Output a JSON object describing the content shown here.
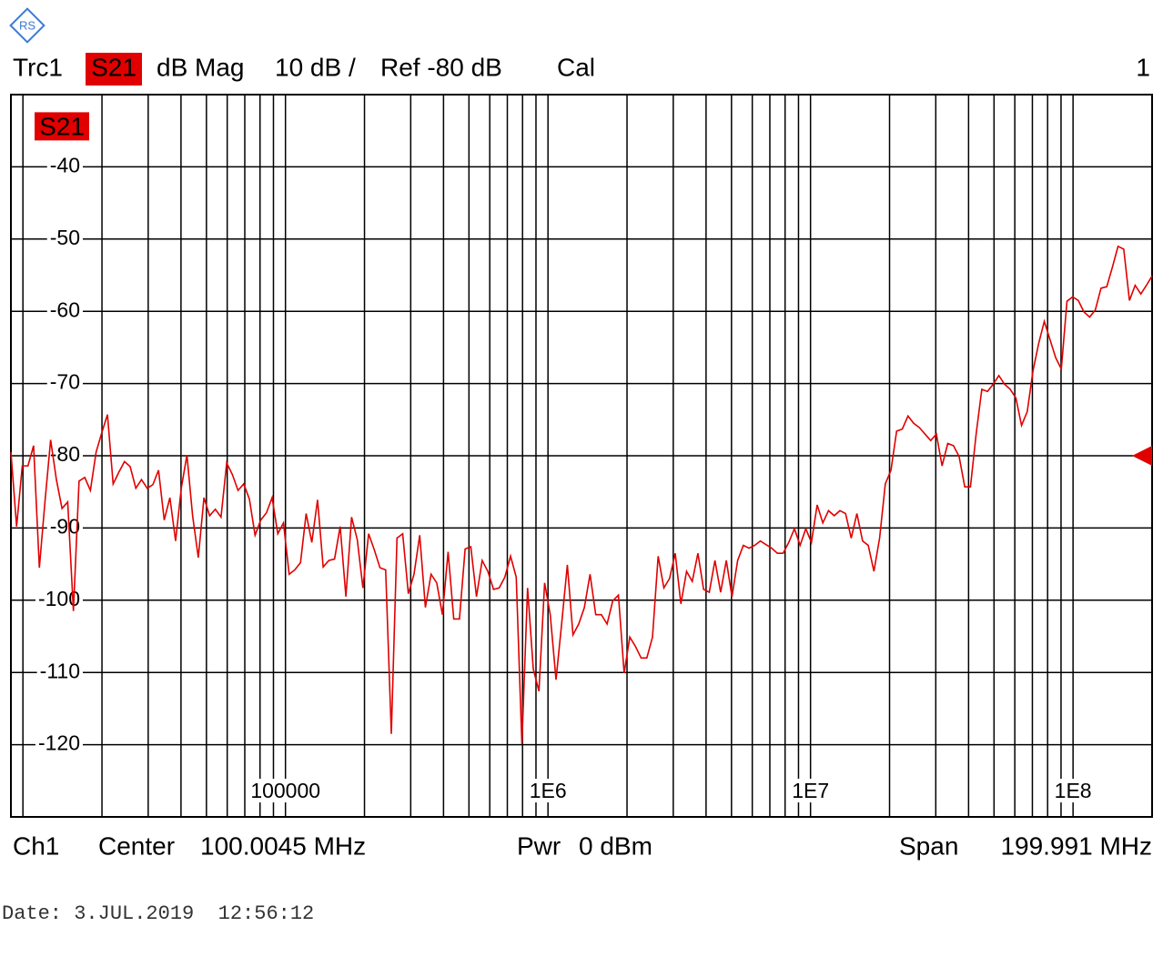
{
  "header": {
    "trace": "Trc1",
    "parameter": "S21",
    "format": "dB Mag",
    "scale": "10 dB /",
    "reference": "Ref -80 dB",
    "cal": "Cal",
    "window": "1"
  },
  "footer": {
    "channel": "Ch1",
    "center_label": "Center",
    "center_value": "100.0045 MHz",
    "power_label": "Pwr",
    "power_value": "0 dBm",
    "span_label": "Span",
    "span_value": "199.991 MHz",
    "date": "Date: 3.JUL.2019  12:56:12"
  },
  "chart_data": {
    "type": "line",
    "log_x": true,
    "grid": true,
    "ref_level": -80,
    "xlim": [
      9000,
      200000000
    ],
    "ylim": [
      -130,
      -30
    ],
    "yticks": [
      -40,
      -50,
      -60,
      -70,
      -80,
      -90,
      -100,
      -110,
      -120
    ],
    "xticks": [
      100000,
      {
        "value": 1000000,
        "label": "1E6"
      },
      {
        "value": 10000000,
        "label": "1E7"
      },
      {
        "value": 100000000,
        "label": "1E8"
      }
    ],
    "xgrid": [
      10000,
      20000,
      30000,
      40000,
      50000,
      60000,
      70000,
      80000,
      90000,
      100000,
      200000,
      300000,
      400000,
      500000,
      600000,
      700000,
      800000,
      900000,
      1000000,
      2000000,
      3000000,
      4000000,
      5000000,
      6000000,
      7000000,
      8000000,
      9000000,
      10000000,
      20000000,
      30000000,
      40000000,
      50000000,
      60000000,
      70000000,
      80000000,
      90000000,
      100000000
    ],
    "x": [
      9000,
      9460,
      9943,
      10450,
      10980,
      11550,
      12130,
      12750,
      13410,
      14090,
      14810,
      15570,
      16360,
      17200,
      18070,
      19000,
      19970,
      20990,
      22060,
      23180,
      24370,
      25610,
      26920,
      28290,
      29740,
      31260,
      32850,
      34530,
      36290,
      38150,
      40100,
      42140,
      44290,
      46560,
      48930,
      51430,
      54060,
      56820,
      59720,
      62770,
      65970,
      69340,
      72880,
      76610,
      80520,
      84630,
      88950,
      93490,
      98270,
      103300,
      108500,
      114100,
      119900,
      126000,
      132500,
      139200,
      146300,
      153800,
      161600,
      169900,
      178600,
      187700,
      197300,
      207400,
      217900,
      229100,
      240800,
      253100,
      266000,
      279600,
      293800,
      308800,
      324600,
      341200,
      358600,
      376900,
      396200,
      416400,
      437600,
      460000,
      483500,
      508200,
      534100,
      561400,
      590000,
      620200,
      651800,
      685100,
      720100,
      756900,
      795500,
      836100,
      878800,
      923700,
      970900,
      1020000,
      1073000,
      1127000,
      1185000,
      1245000,
      1309000,
      1376000,
      1446000,
      1520000,
      1597000,
      1679000,
      1765000,
      1855000,
      1950000,
      2049000,
      2154000,
      2264000,
      2379000,
      2501000,
      2628000,
      2763000,
      2904000,
      3052000,
      3208000,
      3372000,
      3544000,
      3725000,
      3915000,
      4115000,
      4325000,
      4546000,
      4778000,
      5022000,
      5278000,
      5548000,
      5831000,
      6129000,
      6441000,
      6770000,
      7116000,
      7479000,
      7861000,
      8263000,
      8685000,
      9128000,
      9594000,
      10080000,
      10600000,
      11140000,
      11710000,
      12310000,
      12940000,
      13600000,
      14290000,
      15020000,
      15790000,
      16590000,
      17440000,
      18330000,
      19270000,
      20250000,
      21280000,
      22370000,
      23510000,
      24710000,
      25980000,
      27300000,
      28700000,
      30160000,
      31700000,
      33320000,
      35020000,
      36810000,
      38690000,
      40660000,
      42740000,
      44920000,
      47220000,
      49630000,
      52160000,
      54830000,
      57630000,
      60570000,
      63660000,
      66910000,
      70330000,
      73920000,
      77690000,
      81660000,
      85830000,
      90210000,
      94820000,
      99660000,
      104700000,
      110100000,
      115700000,
      121600000,
      127800000,
      134400000,
      141200000,
      148400000,
      156000000,
      164000000,
      172400000,
      181200000,
      190400000,
      200000000
    ],
    "series": [
      {
        "name": "S21",
        "color": "#e00000",
        "values": [
          -79.5,
          -89.8,
          -81.4,
          -81.4,
          -78.6,
          -95.5,
          -86.4,
          -77.8,
          -83.3,
          -87.3,
          -86.4,
          -101.5,
          -83.5,
          -83,
          -84.8,
          -79.5,
          -76.8,
          -74.3,
          -83.9,
          -82.3,
          -80.8,
          -81.5,
          -84.5,
          -83.3,
          -84.5,
          -84,
          -82,
          -88.9,
          -85.8,
          -91.8,
          -84.5,
          -79.9,
          -88.3,
          -94.1,
          -85.8,
          -88.3,
          -87.4,
          -88.5,
          -81,
          -82.6,
          -84.8,
          -83.9,
          -86,
          -91,
          -88.9,
          -87.9,
          -85.8,
          -90.8,
          -89.3,
          -96.4,
          -95.8,
          -94.8,
          -88,
          -92,
          -86.1,
          -95.4,
          -94.5,
          -94.3,
          -89.8,
          -99.5,
          -88.5,
          -91.6,
          -98.3,
          -90.8,
          -93,
          -95.5,
          -95.8,
          -118.5,
          -91.4,
          -90.8,
          -99.1,
          -96.4,
          -91,
          -101,
          -96.4,
          -97.6,
          -102,
          -93.3,
          -102.6,
          -102.6,
          -92.9,
          -92.6,
          -99.5,
          -94.5,
          -96,
          -98.5,
          -98.3,
          -96.8,
          -93.9,
          -96.8,
          -119.9,
          -98.3,
          -109.5,
          -112.6,
          -97.6,
          -102,
          -111,
          -103.3,
          -95.1,
          -104.8,
          -103.3,
          -101,
          -96.4,
          -102,
          -102,
          -103.3,
          -100.1,
          -99.3,
          -110.1,
          -105.1,
          -106.4,
          -108,
          -108,
          -105.1,
          -93.9,
          -98.3,
          -97,
          -93.5,
          -100.5,
          -96,
          -97.4,
          -93.5,
          -98.5,
          -98.9,
          -94.5,
          -98.9,
          -94.5,
          -99.5,
          -94.5,
          -92.4,
          -92.8,
          -92.4,
          -91.8,
          -92.3,
          -92.8,
          -93.5,
          -93.5,
          -92,
          -90.1,
          -92.4,
          -90.1,
          -92,
          -86.8,
          -89.3,
          -87.6,
          -88.3,
          -87.6,
          -88,
          -91.4,
          -88,
          -91.8,
          -92.4,
          -96,
          -91.4,
          -83.9,
          -82,
          -76.6,
          -76.3,
          -74.5,
          -75.5,
          -76.1,
          -77,
          -77.9,
          -77,
          -81.4,
          -78.3,
          -78.6,
          -80.1,
          -84.3,
          -84.3,
          -77,
          -70.8,
          -71.1,
          -70.1,
          -68.9,
          -70.1,
          -70.8,
          -72,
          -75.8,
          -73.9,
          -68.3,
          -64.5,
          -61.4,
          -63.9,
          -66.4,
          -68,
          -58.6,
          -58,
          -58.5,
          -60.1,
          -60.8,
          -59.8,
          -56.8,
          -56.6,
          -53.9,
          -51,
          -51.4,
          -58.5,
          -56.4,
          -57.6,
          -56.4,
          -55.1
        ]
      }
    ]
  }
}
